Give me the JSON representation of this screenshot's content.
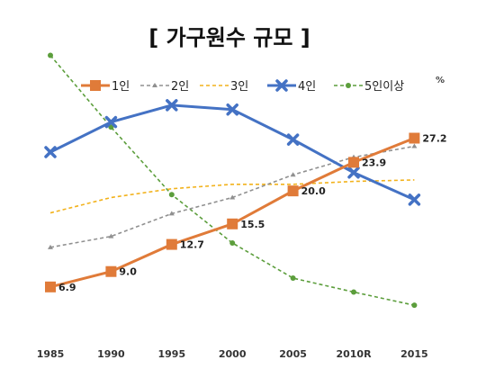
{
  "chart_data": {
    "type": "line",
    "title": "[ 가구원수 규모 ]",
    "unit": "%",
    "categories": [
      "1985",
      "1990",
      "1995",
      "2000",
      "2005",
      "2010R",
      "2015"
    ],
    "ylim": [
      0,
      35
    ],
    "grid": false,
    "legend_position": "top",
    "series": [
      {
        "name": "1인",
        "color": "#E07B39",
        "style": "solid",
        "marker": "square",
        "values": [
          6.9,
          9.0,
          12.7,
          15.5,
          20.0,
          23.9,
          27.2
        ],
        "data_labels": [
          "6.9",
          "9.0",
          "12.7",
          "15.5",
          "20.0",
          "23.9",
          "27.2"
        ]
      },
      {
        "name": "2인",
        "color": "#909090",
        "style": "dashed",
        "marker": "triangle",
        "values": [
          12.3,
          13.8,
          16.9,
          19.1,
          22.2,
          24.6,
          26.1
        ]
      },
      {
        "name": "3인",
        "color": "#F2B21C",
        "style": "dashed",
        "marker": "none",
        "values": [
          17.0,
          19.1,
          20.3,
          20.9,
          20.9,
          21.3,
          21.5
        ]
      },
      {
        "name": "4인",
        "color": "#4472C4",
        "style": "solid",
        "marker": "x",
        "values": [
          25.3,
          29.4,
          31.7,
          31.1,
          27.0,
          22.5,
          18.8
        ]
      },
      {
        "name": "5인이상",
        "color": "#5C9E3C",
        "style": "dashed",
        "marker": "dot",
        "values": [
          38.5,
          28.7,
          19.5,
          12.9,
          8.1,
          6.2,
          4.4
        ]
      }
    ]
  }
}
